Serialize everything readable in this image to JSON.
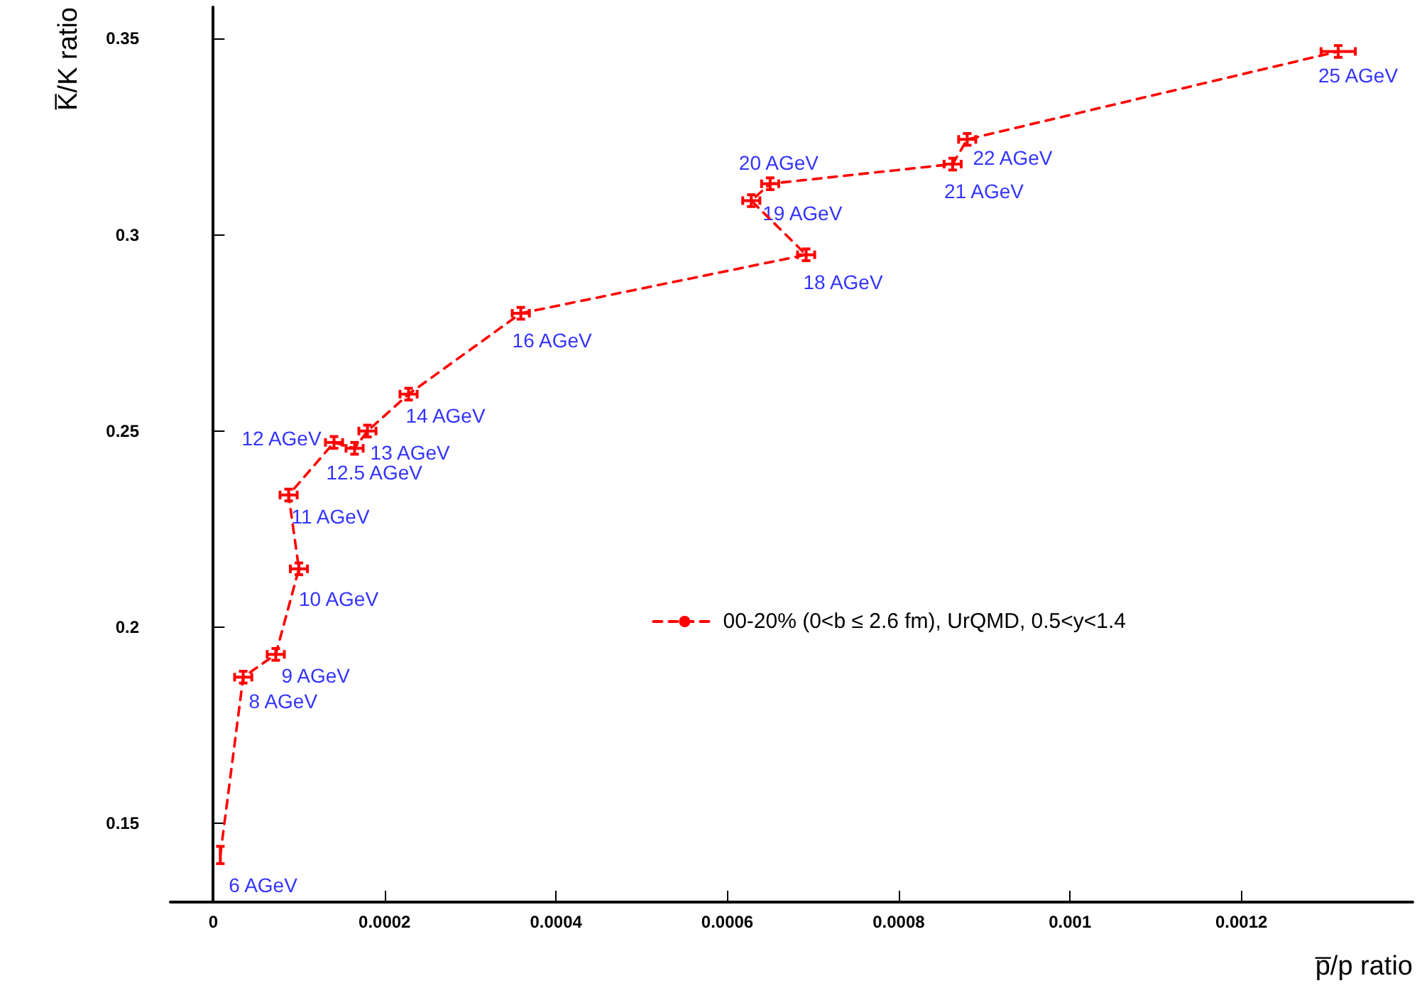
{
  "chart_data": {
    "type": "line",
    "xlabel": "p̅/p ratio",
    "ylabel": "K̅/K ratio",
    "x": [
      8.3e-06,
      3.5e-05,
      7.3e-05,
      0.0001,
      8.8e-05,
      0.000141,
      0.000165,
      0.00018,
      0.000228,
      0.000359,
      0.000692,
      0.000628,
      0.00065,
      0.000863,
      0.00088,
      0.001313
    ],
    "series": [
      {
        "name": "00-20% (0<b ≤ 2.6 fm), UrQMD, 0.5<y<1.4",
        "color": "#ff0000",
        "line_style": "dashed",
        "marker": "none",
        "values": [
          0.142,
          0.1873,
          0.1931,
          0.2149,
          0.2337,
          0.2471,
          0.2456,
          0.25,
          0.2594,
          0.28,
          0.2949,
          0.3087,
          0.313,
          0.318,
          0.3243,
          0.3467
        ],
        "errors": [
          0.0022,
          0.0015,
          0.0015,
          0.0015,
          0.0015,
          0.0015,
          0.0015,
          0.0015,
          0.0015,
          0.0015,
          0.0015,
          0.0015,
          0.0015,
          0.0015,
          0.0015,
          0.0015
        ],
        "xerrors": [
          null,
          1e-05,
          1e-05,
          1e-05,
          1e-05,
          1e-05,
          1e-05,
          1e-05,
          1e-05,
          1e-05,
          1e-05,
          1e-05,
          1e-05,
          1e-05,
          1e-05,
          2e-05
        ]
      }
    ],
    "annotations": [
      {
        "text": "6 AGeV",
        "x": 8.3e-06,
        "y": 0.142
      },
      {
        "text": "8 AGeV",
        "x": 3.5e-05,
        "y": 0.1873
      },
      {
        "text": "9 AGeV",
        "x": 7.3e-05,
        "y": 0.1931
      },
      {
        "text": "10 AGeV",
        "x": 0.0001,
        "y": 0.2149
      },
      {
        "text": "11 AGeV",
        "x": 8.8e-05,
        "y": 0.2337
      },
      {
        "text": "12 AGeV",
        "x": 0.000141,
        "y": 0.2471
      },
      {
        "text": "12.5 AGeV",
        "x": 0.000165,
        "y": 0.2456
      },
      {
        "text": "13 AGeV",
        "x": 0.00018,
        "y": 0.25
      },
      {
        "text": "14 AGeV",
        "x": 0.000228,
        "y": 0.2594
      },
      {
        "text": "16 AGeV",
        "x": 0.000359,
        "y": 0.28
      },
      {
        "text": "18 AGeV",
        "x": 0.000692,
        "y": 0.2949
      },
      {
        "text": "19 AGeV",
        "x": 0.000628,
        "y": 0.3087
      },
      {
        "text": "20 AGeV",
        "x": 0.00065,
        "y": 0.313
      },
      {
        "text": "21 AGeV",
        "x": 0.000863,
        "y": 0.318
      },
      {
        "text": "22 AGeV",
        "x": 0.00088,
        "y": 0.3243
      },
      {
        "text": "25 AGeV",
        "x": 0.001313,
        "y": 0.3467
      }
    ],
    "xlim": [
      -5e-05,
      0.0014
    ],
    "xticks": [
      0,
      0.0002,
      0.0004,
      0.0006,
      0.0008,
      0.001,
      0.0012
    ],
    "ylim": [
      0.13,
      0.358
    ],
    "yticks": [
      0.15,
      0.2,
      0.25,
      0.3,
      0.35
    ],
    "legend": "right"
  }
}
